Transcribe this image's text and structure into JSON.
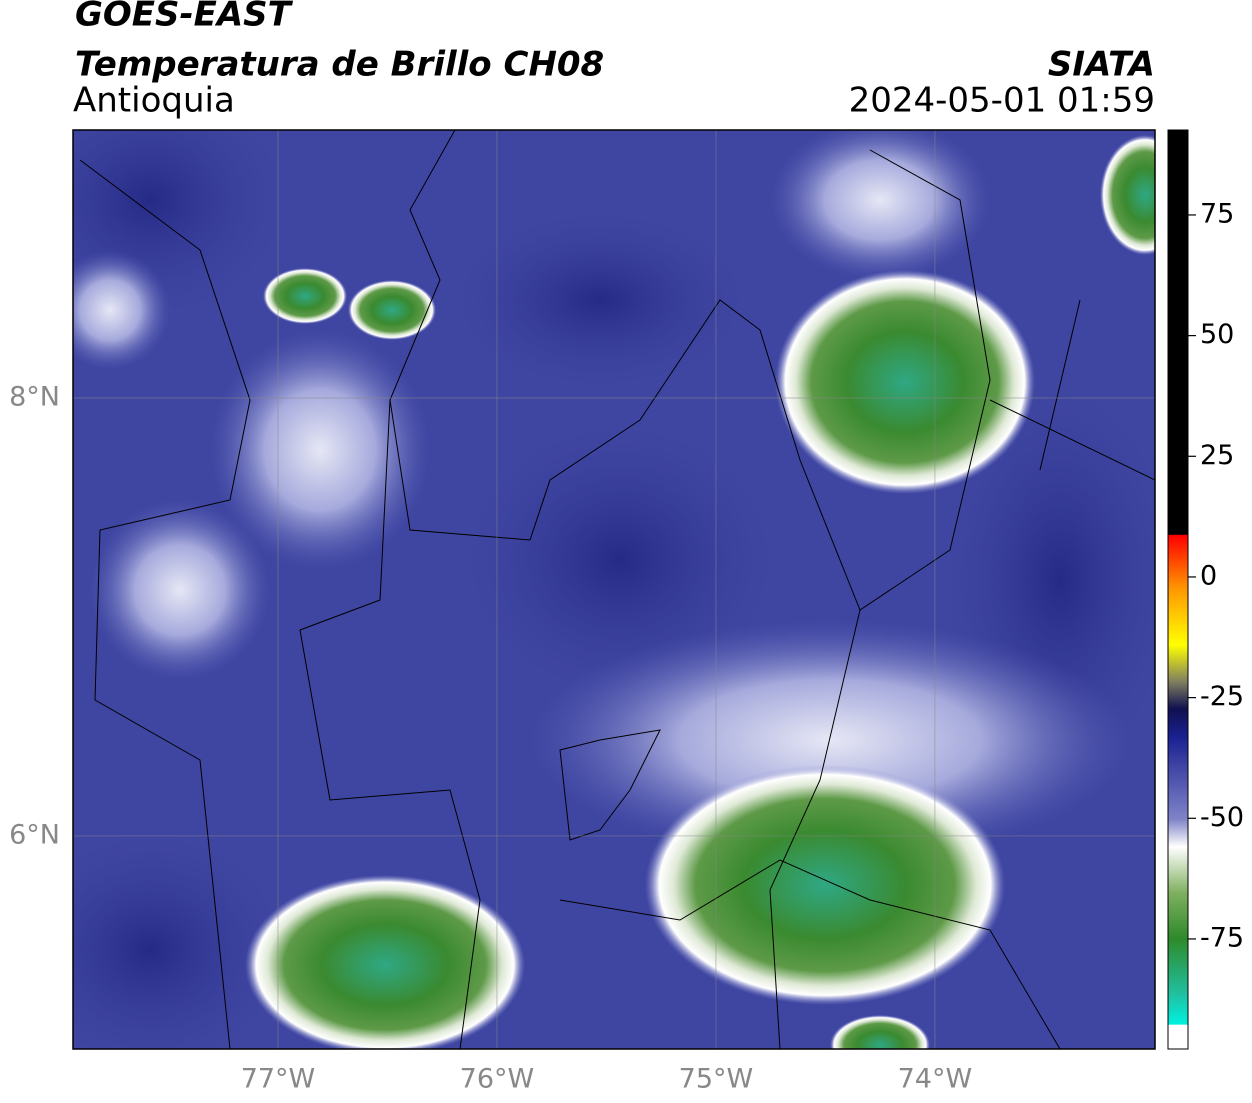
{
  "header": {
    "title": "GOES-EAST",
    "subtitle": "Temperatura de Brillo CH08",
    "region": "Antioquia",
    "source": "SIATA",
    "datetime": "2024-05-01 01:59"
  },
  "map": {
    "lonlim": [
      -77.936,
      -72.995
    ],
    "latlim": [
      5.027,
      9.224
    ],
    "lon_ticks": [
      {
        "value": -77,
        "label": "77°W"
      },
      {
        "value": -76,
        "label": "76°W"
      },
      {
        "value": -75,
        "label": "75°W"
      },
      {
        "value": -74,
        "label": "74°W"
      }
    ],
    "lat_ticks": [
      {
        "value": 8,
        "label": "8°N"
      },
      {
        "value": 6,
        "label": "6°N"
      }
    ]
  },
  "colorbar": {
    "lim": [
      -97.8,
      92.6
    ],
    "ticks": [
      75,
      50,
      25,
      0,
      -25,
      -50,
      -75
    ]
  }
}
